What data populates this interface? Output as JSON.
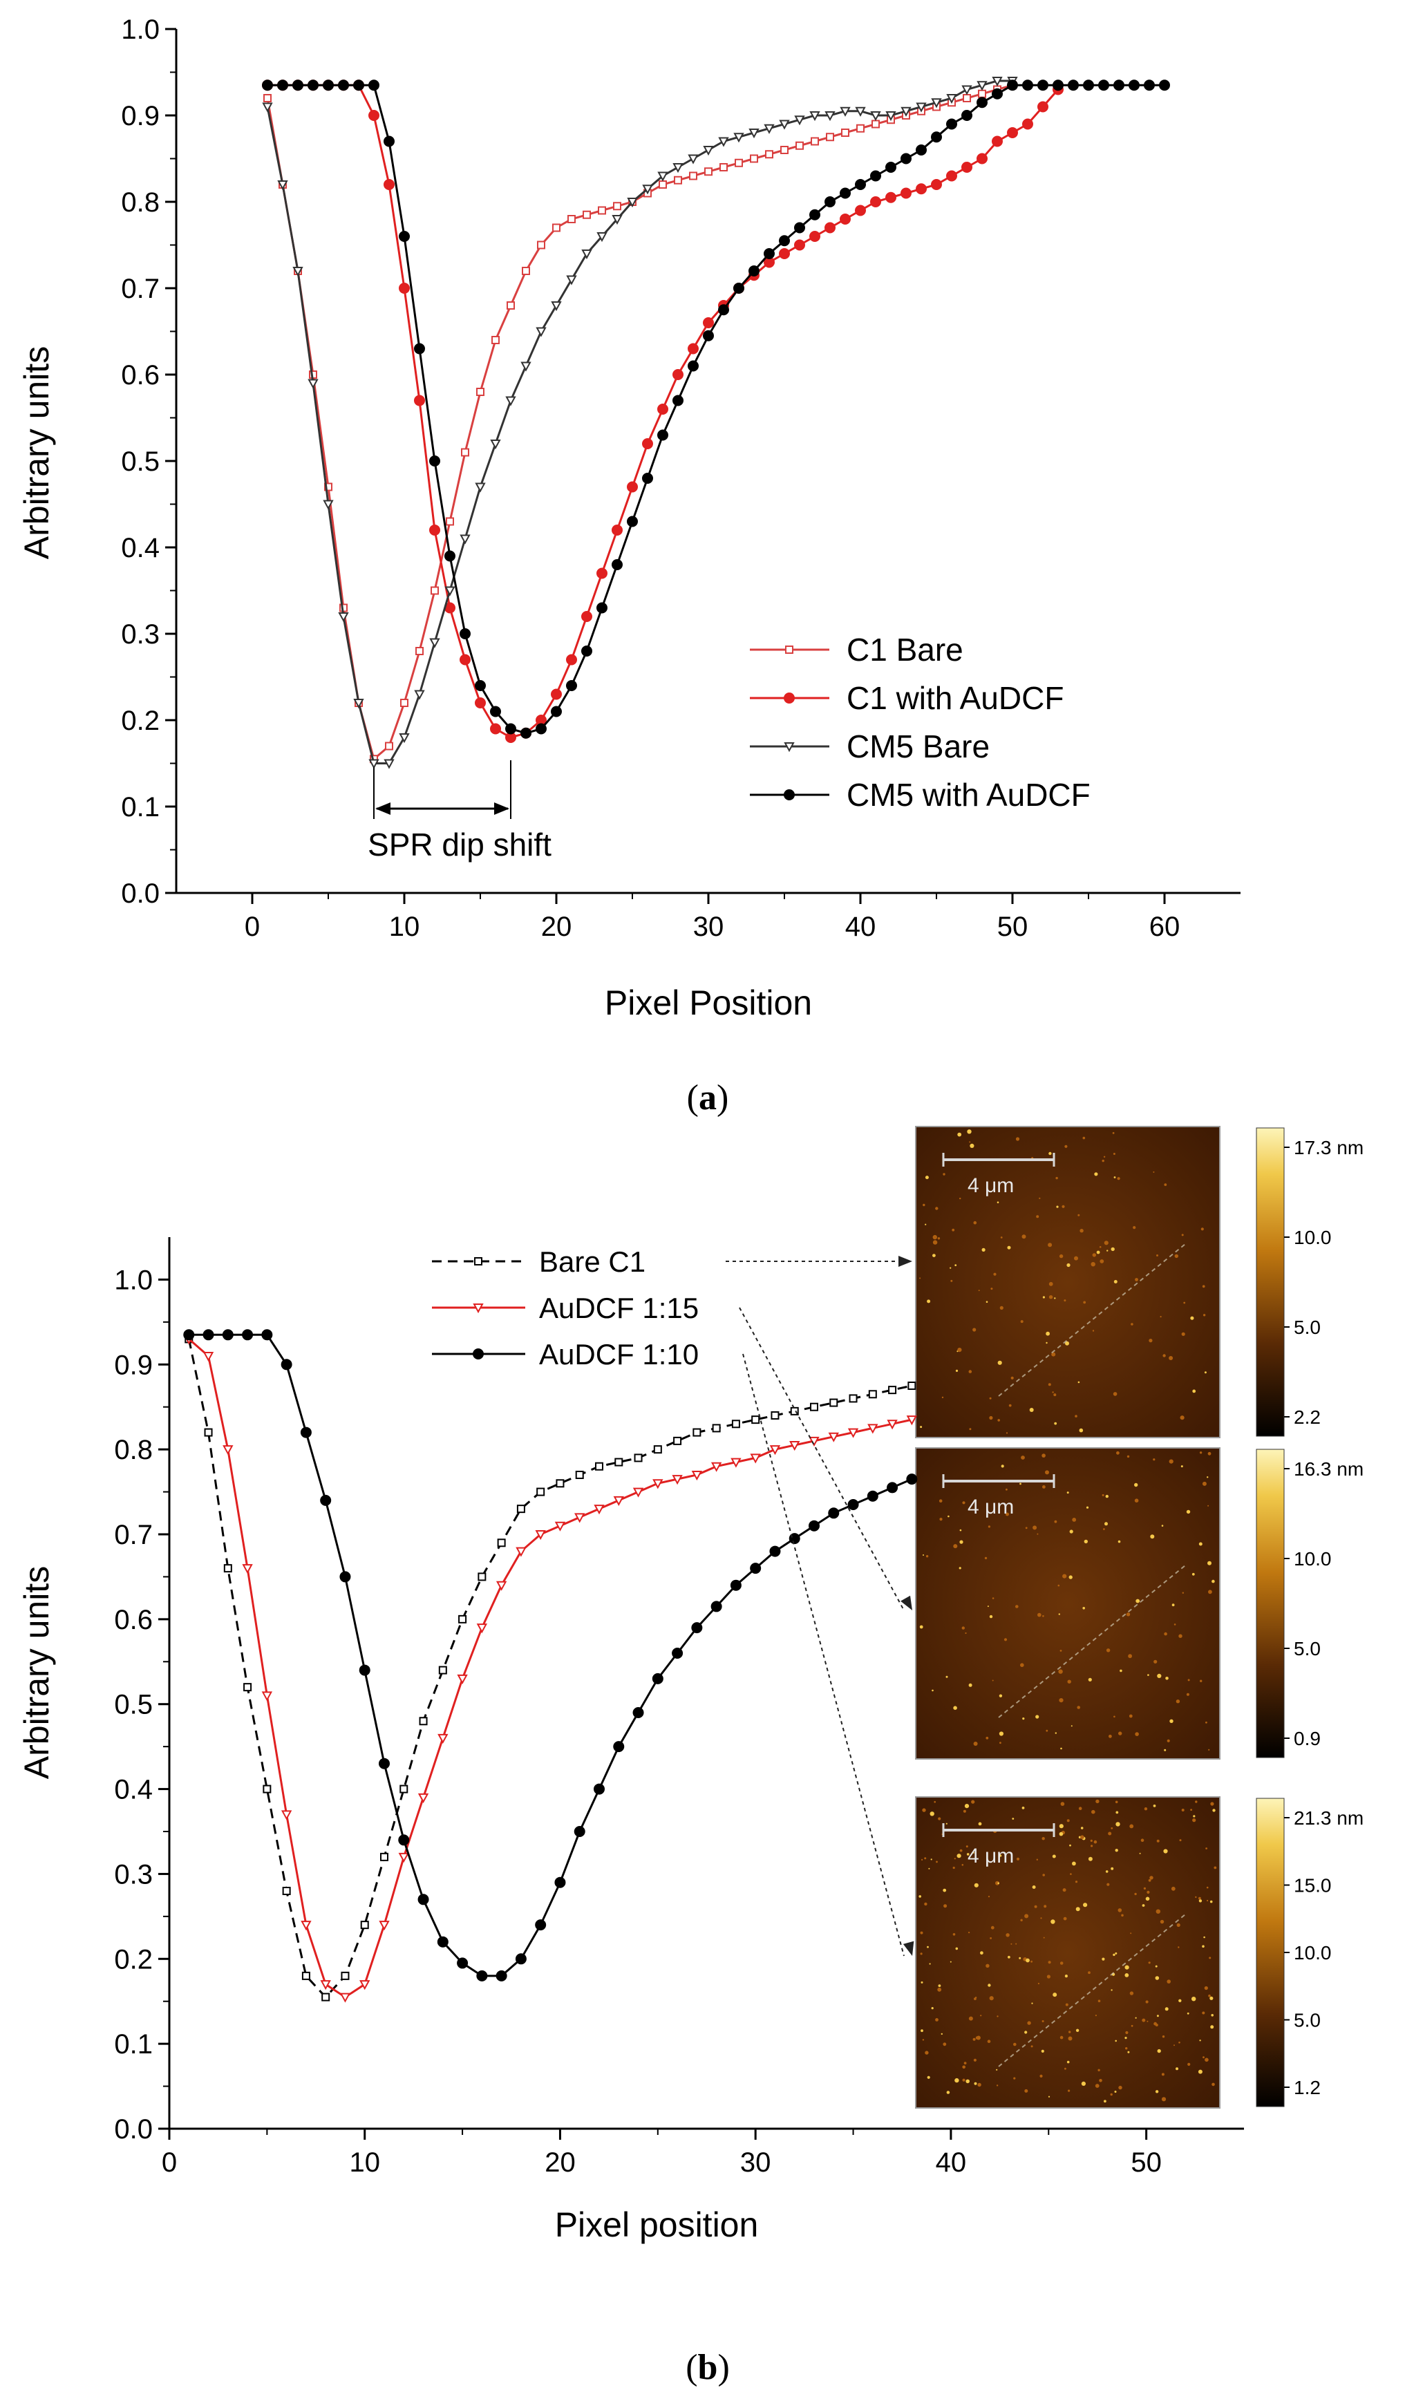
{
  "chart_data": [
    {
      "id": "a",
      "type": "line",
      "panel_label_open": "(",
      "panel_label_letter": "a",
      "panel_label_close": ")",
      "xlabel": "Pixel Position",
      "ylabel": "Arbitrary units",
      "xlim": [
        -5,
        65
      ],
      "ylim": [
        0,
        1.0
      ],
      "xticks": [
        0,
        10,
        20,
        30,
        40,
        50,
        60
      ],
      "yticks": [
        0.0,
        0.1,
        0.2,
        0.3,
        0.4,
        0.5,
        0.6,
        0.7,
        0.8,
        0.9,
        1.0
      ],
      "grid": false,
      "legend_position": "lower-right",
      "annotation": "SPR dip shift",
      "annotation_span_x": [
        8,
        17
      ],
      "series": [
        {
          "name": "C1 Bare",
          "color": "#d94040",
          "marker": "open-square-small",
          "x": [
            1,
            2,
            3,
            4,
            5,
            6,
            7,
            8,
            9,
            10,
            11,
            12,
            13,
            14,
            15,
            16,
            17,
            18,
            19,
            20,
            21,
            22,
            23,
            24,
            25,
            26,
            27,
            28,
            29,
            30,
            31,
            32,
            33,
            34,
            35,
            36,
            37,
            38,
            39,
            40,
            41,
            42,
            43,
            44,
            45,
            46,
            47,
            48,
            49,
            50
          ],
          "y": [
            0.92,
            0.82,
            0.72,
            0.6,
            0.47,
            0.33,
            0.22,
            0.155,
            0.17,
            0.22,
            0.28,
            0.35,
            0.43,
            0.51,
            0.58,
            0.64,
            0.68,
            0.72,
            0.75,
            0.77,
            0.78,
            0.785,
            0.79,
            0.795,
            0.8,
            0.81,
            0.82,
            0.825,
            0.83,
            0.835,
            0.84,
            0.845,
            0.85,
            0.855,
            0.86,
            0.865,
            0.87,
            0.875,
            0.88,
            0.885,
            0.89,
            0.895,
            0.9,
            0.905,
            0.91,
            0.915,
            0.92,
            0.925,
            0.93,
            0.935
          ]
        },
        {
          "name": "C1 with AuDCF",
          "color": "#e02020",
          "marker": "filled-circle",
          "x": [
            1,
            2,
            3,
            4,
            5,
            6,
            7,
            8,
            9,
            10,
            11,
            12,
            13,
            14,
            15,
            16,
            17,
            18,
            19,
            20,
            21,
            22,
            23,
            24,
            25,
            26,
            27,
            28,
            29,
            30,
            31,
            32,
            33,
            34,
            35,
            36,
            37,
            38,
            39,
            40,
            41,
            42,
            43,
            44,
            45,
            46,
            47,
            48,
            49,
            50,
            51,
            52,
            53
          ],
          "y": [
            0.935,
            0.935,
            0.935,
            0.935,
            0.935,
            0.935,
            0.935,
            0.9,
            0.82,
            0.7,
            0.57,
            0.42,
            0.33,
            0.27,
            0.22,
            0.19,
            0.18,
            0.185,
            0.2,
            0.23,
            0.27,
            0.32,
            0.37,
            0.42,
            0.47,
            0.52,
            0.56,
            0.6,
            0.63,
            0.66,
            0.68,
            0.7,
            0.715,
            0.73,
            0.74,
            0.75,
            0.76,
            0.77,
            0.78,
            0.79,
            0.8,
            0.805,
            0.81,
            0.815,
            0.82,
            0.83,
            0.84,
            0.85,
            0.87,
            0.88,
            0.89,
            0.91,
            0.93
          ]
        },
        {
          "name": "CM5 Bare",
          "color": "#333333",
          "marker": "open-triangle-small",
          "x": [
            1,
            2,
            3,
            4,
            5,
            6,
            7,
            8,
            9,
            10,
            11,
            12,
            13,
            14,
            15,
            16,
            17,
            18,
            19,
            20,
            21,
            22,
            23,
            24,
            25,
            26,
            27,
            28,
            29,
            30,
            31,
            32,
            33,
            34,
            35,
            36,
            37,
            38,
            39,
            40,
            41,
            42,
            43,
            44,
            45,
            46,
            47,
            48,
            49,
            50
          ],
          "y": [
            0.91,
            0.82,
            0.72,
            0.59,
            0.45,
            0.32,
            0.22,
            0.15,
            0.15,
            0.18,
            0.23,
            0.29,
            0.35,
            0.41,
            0.47,
            0.52,
            0.57,
            0.61,
            0.65,
            0.68,
            0.71,
            0.74,
            0.76,
            0.78,
            0.8,
            0.815,
            0.83,
            0.84,
            0.85,
            0.86,
            0.87,
            0.875,
            0.88,
            0.885,
            0.89,
            0.895,
            0.9,
            0.9,
            0.905,
            0.905,
            0.9,
            0.9,
            0.905,
            0.91,
            0.915,
            0.92,
            0.93,
            0.935,
            0.94,
            0.94
          ]
        },
        {
          "name": "CM5 with AuDCF",
          "color": "#000000",
          "marker": "filled-circle",
          "x": [
            1,
            2,
            3,
            4,
            5,
            6,
            7,
            8,
            9,
            10,
            11,
            12,
            13,
            14,
            15,
            16,
            17,
            18,
            19,
            20,
            21,
            22,
            23,
            24,
            25,
            26,
            27,
            28,
            29,
            30,
            31,
            32,
            33,
            34,
            35,
            36,
            37,
            38,
            39,
            40,
            41,
            42,
            43,
            44,
            45,
            46,
            47,
            48,
            49,
            50,
            51,
            52,
            53,
            54,
            55,
            56,
            57,
            58,
            59,
            60
          ],
          "y": [
            0.935,
            0.935,
            0.935,
            0.935,
            0.935,
            0.935,
            0.935,
            0.935,
            0.87,
            0.76,
            0.63,
            0.5,
            0.39,
            0.3,
            0.24,
            0.21,
            0.19,
            0.185,
            0.19,
            0.21,
            0.24,
            0.28,
            0.33,
            0.38,
            0.43,
            0.48,
            0.53,
            0.57,
            0.61,
            0.645,
            0.675,
            0.7,
            0.72,
            0.74,
            0.755,
            0.77,
            0.785,
            0.8,
            0.81,
            0.82,
            0.83,
            0.84,
            0.85,
            0.86,
            0.875,
            0.89,
            0.9,
            0.915,
            0.925,
            0.935,
            0.935,
            0.935,
            0.935,
            0.935,
            0.935,
            0.935,
            0.935,
            0.935,
            0.935,
            0.935
          ]
        }
      ]
    },
    {
      "id": "b",
      "type": "line",
      "panel_label_open": "(",
      "panel_label_letter": "b",
      "panel_label_close": ")",
      "xlabel": "Pixel position",
      "ylabel": "Arbitrary units",
      "xlim": [
        0,
        55
      ],
      "ylim": [
        0,
        1.05
      ],
      "xticks": [
        0,
        10,
        20,
        30,
        40,
        50
      ],
      "yticks": [
        0.0,
        0.1,
        0.2,
        0.3,
        0.4,
        0.5,
        0.6,
        0.7,
        0.8,
        0.9,
        1.0
      ],
      "grid": false,
      "legend_position": "top-center",
      "series": [
        {
          "name": "Bare C1",
          "color": "#000000",
          "dash": true,
          "marker": "open-square-small",
          "x": [
            1,
            2,
            3,
            4,
            5,
            6,
            7,
            8,
            9,
            10,
            11,
            12,
            13,
            14,
            15,
            16,
            17,
            18,
            19,
            20,
            21,
            22,
            23,
            24,
            25,
            26,
            27,
            28,
            29,
            30,
            31,
            32,
            33,
            34,
            35,
            36,
            37,
            38
          ],
          "y": [
            0.93,
            0.82,
            0.66,
            0.52,
            0.4,
            0.28,
            0.18,
            0.155,
            0.18,
            0.24,
            0.32,
            0.4,
            0.48,
            0.54,
            0.6,
            0.65,
            0.69,
            0.73,
            0.75,
            0.76,
            0.77,
            0.78,
            0.785,
            0.79,
            0.8,
            0.81,
            0.82,
            0.825,
            0.83,
            0.835,
            0.84,
            0.845,
            0.85,
            0.855,
            0.86,
            0.865,
            0.87,
            0.875
          ]
        },
        {
          "name": "AuDCF 1:15",
          "color": "#e02020",
          "marker": "open-triangle-small",
          "x": [
            1,
            2,
            3,
            4,
            5,
            6,
            7,
            8,
            9,
            10,
            11,
            12,
            13,
            14,
            15,
            16,
            17,
            18,
            19,
            20,
            21,
            22,
            23,
            24,
            25,
            26,
            27,
            28,
            29,
            30,
            31,
            32,
            33,
            34,
            35,
            36,
            37,
            38
          ],
          "y": [
            0.93,
            0.91,
            0.8,
            0.66,
            0.51,
            0.37,
            0.24,
            0.17,
            0.155,
            0.17,
            0.24,
            0.32,
            0.39,
            0.46,
            0.53,
            0.59,
            0.64,
            0.68,
            0.7,
            0.71,
            0.72,
            0.73,
            0.74,
            0.75,
            0.76,
            0.765,
            0.77,
            0.78,
            0.785,
            0.79,
            0.8,
            0.805,
            0.81,
            0.815,
            0.82,
            0.825,
            0.83,
            0.835
          ]
        },
        {
          "name": "AuDCF 1:10",
          "color": "#000000",
          "marker": "filled-circle",
          "x": [
            1,
            2,
            3,
            4,
            5,
            6,
            7,
            8,
            9,
            10,
            11,
            12,
            13,
            14,
            15,
            16,
            17,
            18,
            19,
            20,
            21,
            22,
            23,
            24,
            25,
            26,
            27,
            28,
            29,
            30,
            31,
            32,
            33,
            34,
            35,
            36,
            37,
            38
          ],
          "y": [
            0.935,
            0.935,
            0.935,
            0.935,
            0.935,
            0.9,
            0.82,
            0.74,
            0.65,
            0.54,
            0.43,
            0.34,
            0.27,
            0.22,
            0.195,
            0.18,
            0.18,
            0.2,
            0.24,
            0.29,
            0.35,
            0.4,
            0.45,
            0.49,
            0.53,
            0.56,
            0.59,
            0.615,
            0.64,
            0.66,
            0.68,
            0.695,
            0.71,
            0.725,
            0.735,
            0.745,
            0.755,
            0.765
          ]
        }
      ],
      "afm_images": [
        {
          "scale_label": "4 μm",
          "colorbar_ticks": [
            "17.3 nm",
            "10.0",
            "5.0",
            "2.2"
          ]
        },
        {
          "scale_label": "4 μm",
          "colorbar_ticks": [
            "16.3 nm",
            "10.0",
            "5.0",
            "0.9"
          ]
        },
        {
          "scale_label": "4 μm",
          "colorbar_ticks": [
            "21.3 nm",
            "15.0",
            "10.0",
            "5.0",
            "1.2"
          ]
        }
      ]
    }
  ]
}
